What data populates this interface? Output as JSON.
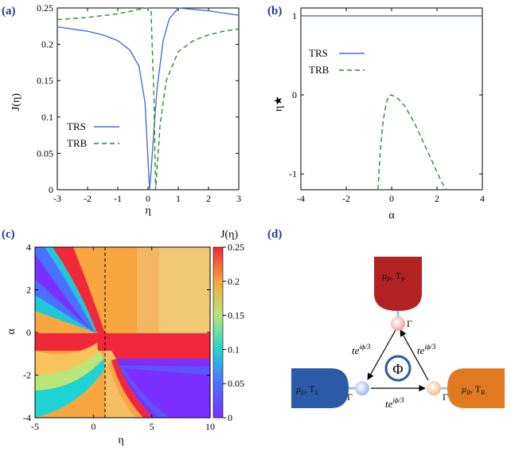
{
  "panels": {
    "a": {
      "label": "(a)",
      "ylabel": "J(η)",
      "xlabel": "η",
      "xticks": [
        "-3",
        "-2",
        "-1",
        "0",
        "1",
        "2",
        "3"
      ],
      "yticks": [
        "0",
        "0.05",
        "0.1",
        "0.15",
        "0.2",
        "0.25"
      ],
      "legend": [
        {
          "name": "TRS",
          "style": "solid",
          "color": "#4a6fd6"
        },
        {
          "name": "TRB",
          "style": "dashed",
          "color": "#2e8b2e"
        }
      ]
    },
    "b": {
      "label": "(b)",
      "ylabel": "η★",
      "xlabel": "α",
      "xticks": [
        "-4",
        "-2",
        "0",
        "2",
        "4"
      ],
      "yticks": [
        "1",
        "0",
        "-1"
      ],
      "legend": [
        {
          "name": "TRS",
          "style": "solid",
          "color": "#4a6fd6"
        },
        {
          "name": "TRB",
          "style": "dashed",
          "color": "#2e8b2e"
        }
      ]
    },
    "c": {
      "label": "(c)",
      "ylabel": "α",
      "xlabel": "η",
      "colorbar_label": "J(η)",
      "xticks": [
        "-5",
        "0",
        "5",
        "10"
      ],
      "yticks": [
        "4",
        "2",
        "0",
        "-2",
        "-4"
      ],
      "cbticks": [
        "0.25",
        "0.2",
        "0.15",
        "0.1",
        "0.05",
        "0"
      ]
    },
    "d": {
      "label": "(d)",
      "gamma": "Γ",
      "phi": "Φ",
      "hop": "te",
      "hop_exp": "iϕ/3",
      "reservoirs": {
        "P": {
          "mu": "μ",
          "mu_sub": "P",
          "t": "T",
          "t_sub": "P",
          "color": "#b22222"
        },
        "L": {
          "mu": "μ",
          "mu_sub": "L",
          "t": "T",
          "t_sub": "L",
          "color": "#2a5aa8"
        },
        "R": {
          "mu": "μ",
          "mu_sub": "R",
          "t": "T",
          "t_sub": "R",
          "color": "#e07a22"
        }
      }
    }
  },
  "chart_data": [
    {
      "panel": "a",
      "type": "line",
      "xlabel": "η",
      "ylabel": "J(η)",
      "xlim": [
        -3,
        3
      ],
      "ylim": [
        0,
        0.25
      ],
      "series": [
        {
          "name": "TRS",
          "x": [
            -3,
            -2.5,
            -2,
            -1.5,
            -1,
            -0.6,
            -0.3,
            -0.1,
            0,
            0.05,
            0.1,
            0.2,
            0.3,
            0.5,
            0.7,
            1,
            1.5,
            2,
            2.5,
            3
          ],
          "y": [
            0.224,
            0.221,
            0.218,
            0.213,
            0.205,
            0.192,
            0.17,
            0.12,
            0.04,
            0.0,
            0.025,
            0.085,
            0.14,
            0.205,
            0.235,
            0.25,
            0.248,
            0.246,
            0.243,
            0.24
          ]
        },
        {
          "name": "TRB",
          "x": [
            -3,
            -2,
            -1,
            -0.5,
            -0.2,
            0,
            0.1,
            0.2,
            0.25,
            0.3,
            0.4,
            0.6,
            1,
            1.5,
            2,
            2.5,
            3
          ],
          "y": [
            0.234,
            0.237,
            0.242,
            0.246,
            0.249,
            0.25,
            0.245,
            0.12,
            0.0,
            0.03,
            0.09,
            0.15,
            0.19,
            0.205,
            0.213,
            0.218,
            0.221
          ]
        }
      ]
    },
    {
      "panel": "b",
      "type": "line",
      "xlabel": "α",
      "ylabel": "η★",
      "xlim": [
        -4,
        4
      ],
      "ylim": [
        -1.2,
        1.1
      ],
      "series": [
        {
          "name": "TRS",
          "x": [
            -4,
            4
          ],
          "y": [
            1,
            1
          ]
        },
        {
          "name": "TRB",
          "x": [
            -0.6,
            -0.5,
            -0.4,
            -0.3,
            -0.2,
            -0.1,
            0,
            0.3,
            0.6,
            1,
            1.4,
            1.8,
            2.2,
            2.4
          ],
          "y": [
            -1.2,
            -0.7,
            -0.4,
            -0.2,
            -0.07,
            -0.01,
            0,
            -0.05,
            -0.15,
            -0.35,
            -0.6,
            -0.85,
            -1.1,
            -1.2
          ]
        }
      ]
    },
    {
      "panel": "c",
      "type": "heatmap",
      "xlabel": "η",
      "ylabel": "α",
      "xlim": [
        -5,
        10
      ],
      "ylim": [
        -4,
        4
      ],
      "zlim": [
        0,
        0.25
      ],
      "colorbar_label": "J(η)"
    }
  ]
}
